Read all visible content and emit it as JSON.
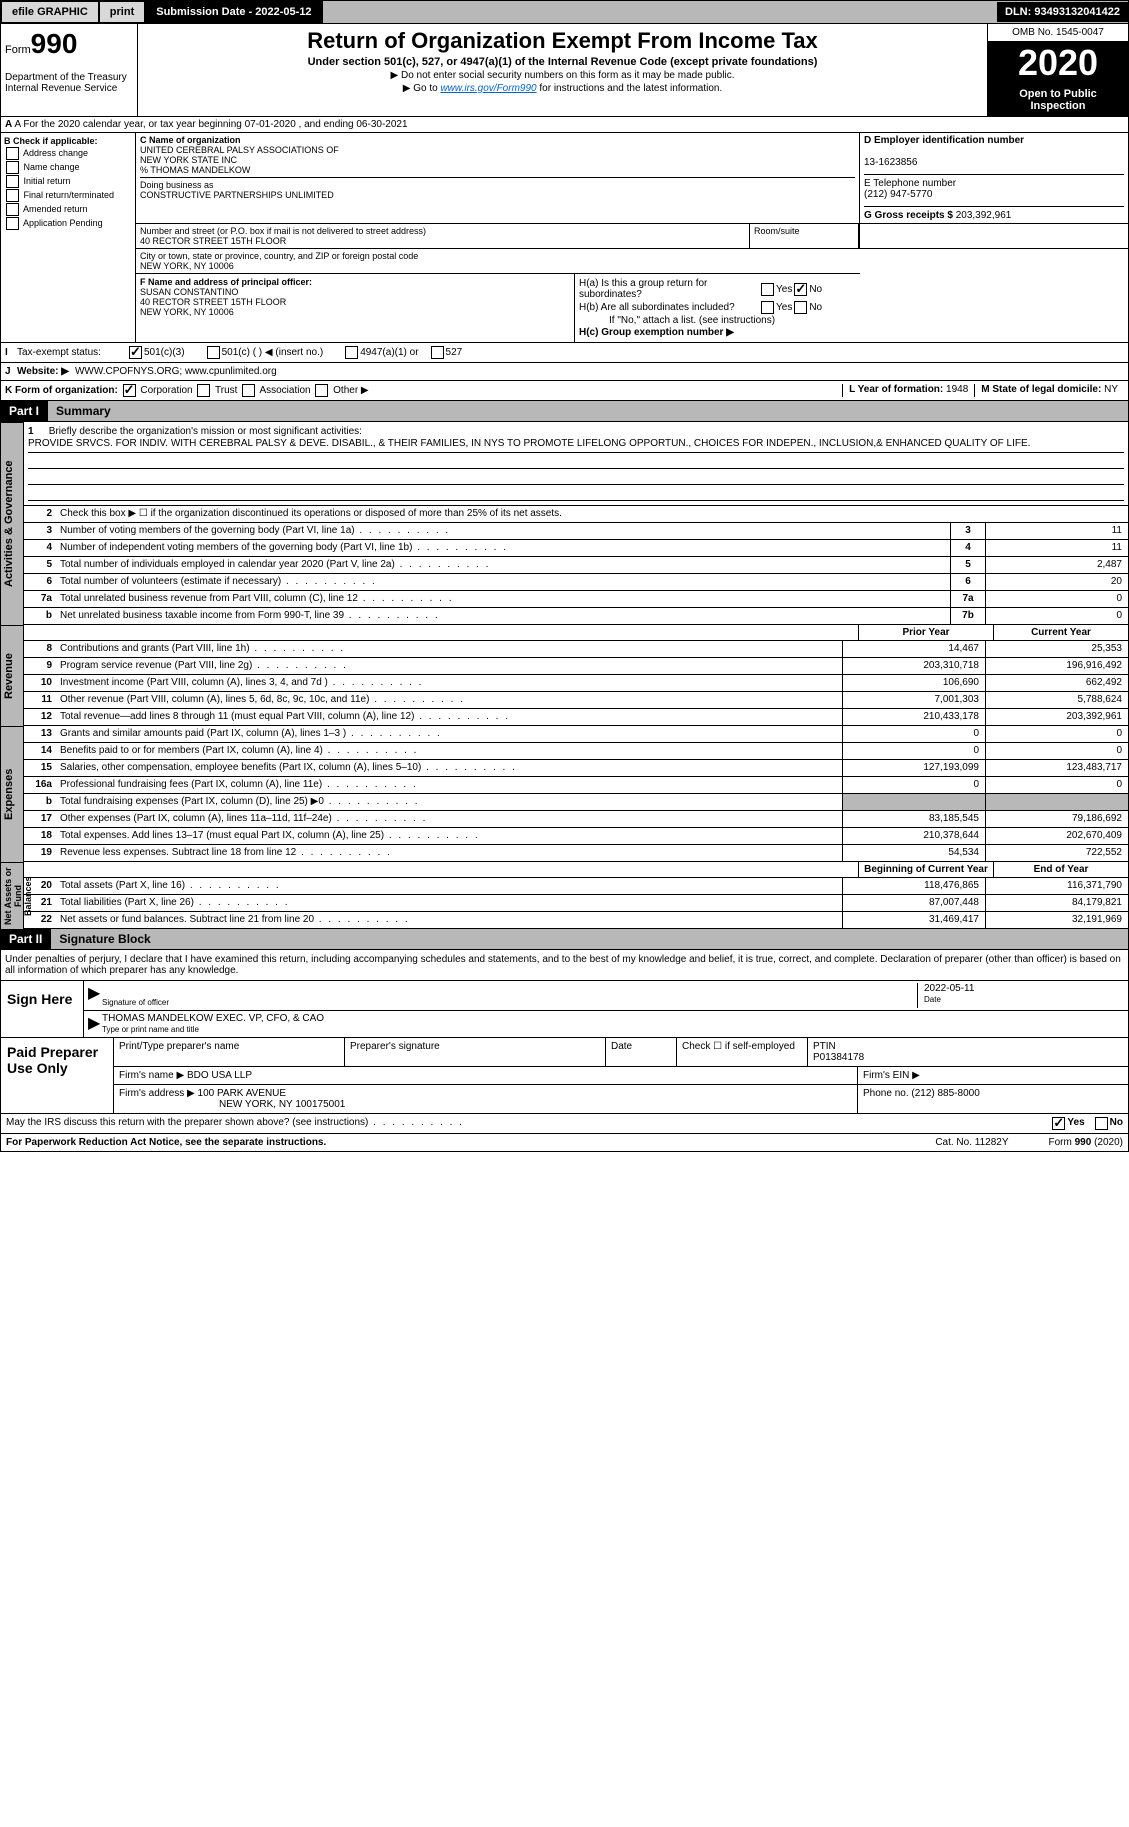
{
  "header": {
    "efile": "efile GRAPHIC",
    "print": "print",
    "subdate_lbl": "Submission Date - ",
    "subdate": "2022-05-12",
    "dln_lbl": "DLN: ",
    "dln": "93493132041422"
  },
  "form": {
    "form_lbl": "Form",
    "form_no": "990",
    "dept": "Department of the Treasury\nInternal Revenue Service",
    "title": "Return of Organization Exempt From Income Tax",
    "sub1": "Under section 501(c), 527, or 4947(a)(1) of the Internal Revenue Code (except private foundations)",
    "sub2": "▶ Do not enter social security numbers on this form as it may be made public.",
    "goto": "▶ Go to ",
    "goto_link": "www.irs.gov/Form990",
    "goto_after": " for instructions and the latest information.",
    "omb": "OMB No. 1545-0047",
    "year": "2020",
    "otp": "Open to Public Inspection"
  },
  "lineA": "A For the 2020 calendar year, or tax year beginning 07-01-2020    , and ending 06-30-2021",
  "B": {
    "hdr": "B Check if applicable:",
    "opts": [
      "Address change",
      "Name change",
      "Initial return",
      "Final return/terminated",
      "Amended return",
      "Application Pending"
    ]
  },
  "C": {
    "name_lbl": "C Name of organization",
    "name": "UNITED CEREBRAL PALSY ASSOCIATIONS OF\nNEW YORK STATE INC\n% THOMAS MANDELKOW",
    "dba_lbl": "Doing business as",
    "dba": "CONSTRUCTIVE PARTNERSHIPS UNLIMITED",
    "addr_lbl": "Number and street (or P.O. box if mail is not delivered to street address)",
    "addr": "40 RECTOR STREET 15TH FLOOR",
    "room_lbl": "Room/suite",
    "city_lbl": "City or town, state or province, country, and ZIP or foreign postal code",
    "city": "NEW YORK, NY  10006"
  },
  "D": {
    "lbl": "D Employer identification number",
    "val": "13-1623856"
  },
  "E": {
    "lbl": "E Telephone number",
    "val": "(212) 947-5770"
  },
  "G": {
    "lbl": "G Gross receipts $ ",
    "val": "203,392,961"
  },
  "F": {
    "lbl": "F  Name and address of principal officer:",
    "name": "SUSAN CONSTANTINO",
    "addr": "40 RECTOR STREET 15TH FLOOR\nNEW YORK, NY 10006"
  },
  "H": {
    "a_lbl": "H(a)  Is this a group return for subordinates?",
    "b_lbl": "H(b)  Are all subordinates included?",
    "b_note": "If \"No,\" attach a list. (see instructions)",
    "c_lbl": "H(c)  Group exemption number ▶",
    "yes": "Yes",
    "no": "No"
  },
  "I": {
    "lbl": "Tax-exempt status:",
    "opts": [
      "501(c)(3)",
      "501(c) (  ) ◀ (insert no.)",
      "4947(a)(1) or",
      "527"
    ]
  },
  "J": {
    "lbl": "J",
    "txt": "Website: ▶",
    "val": "WWW.CPOFNYS.ORG; www.cpunlimited.org"
  },
  "K": {
    "lbl": "K Form of organization:",
    "opts": [
      "Corporation",
      "Trust",
      "Association",
      "Other ▶"
    ]
  },
  "L": {
    "lbl": "L Year of formation: ",
    "val": "1948"
  },
  "M": {
    "lbl": "M State of legal domicile: ",
    "val": "NY"
  },
  "part1": {
    "hdr": "Part I",
    "title": "Summary"
  },
  "briefly": {
    "num": "1",
    "lbl": "Briefly describe the organization's mission or most significant activities:",
    "txt": "PROVIDE SRVCS. FOR INDIV. WITH CEREBRAL PALSY & DEVE. DISABIL., & THEIR FAMILIES, IN NYS TO PROMOTE LIFELONG OPPORTUN., CHOICES FOR INDEPEN., INCLUSION,& ENHANCED QUALITY OF LIFE."
  },
  "gov": {
    "l2": "Check this box ▶  ☐  if the organization discontinued its operations or disposed of more than 25% of its net assets.",
    "rows": [
      {
        "n": "3",
        "t": "Number of voting members of the governing body (Part VI, line 1a)",
        "b": "3",
        "v": "11"
      },
      {
        "n": "4",
        "t": "Number of independent voting members of the governing body (Part VI, line 1b)",
        "b": "4",
        "v": "11"
      },
      {
        "n": "5",
        "t": "Total number of individuals employed in calendar year 2020 (Part V, line 2a)",
        "b": "5",
        "v": "2,487"
      },
      {
        "n": "6",
        "t": "Total number of volunteers (estimate if necessary)",
        "b": "6",
        "v": "20"
      },
      {
        "n": "7a",
        "t": "Total unrelated business revenue from Part VIII, column (C), line 12",
        "b": "7a",
        "v": "0"
      },
      {
        "n": "b",
        "t": "Net unrelated business taxable income from Form 990-T, line 39",
        "b": "7b",
        "v": "0"
      }
    ]
  },
  "cols": {
    "prior": "Prior Year",
    "curr": "Current Year",
    "boy": "Beginning of Current Year",
    "eoy": "End of Year"
  },
  "rev": [
    {
      "n": "8",
      "t": "Contributions and grants (Part VIII, line 1h)",
      "p": "14,467",
      "c": "25,353"
    },
    {
      "n": "9",
      "t": "Program service revenue (Part VIII, line 2g)",
      "p": "203,310,718",
      "c": "196,916,492"
    },
    {
      "n": "10",
      "t": "Investment income (Part VIII, column (A), lines 3, 4, and 7d )",
      "p": "106,690",
      "c": "662,492"
    },
    {
      "n": "11",
      "t": "Other revenue (Part VIII, column (A), lines 5, 6d, 8c, 9c, 10c, and 11e)",
      "p": "7,001,303",
      "c": "5,788,624"
    },
    {
      "n": "12",
      "t": "Total revenue—add lines 8 through 11 (must equal Part VIII, column (A), line 12)",
      "p": "210,433,178",
      "c": "203,392,961"
    }
  ],
  "exp": [
    {
      "n": "13",
      "t": "Grants and similar amounts paid (Part IX, column (A), lines 1–3 )",
      "p": "0",
      "c": "0"
    },
    {
      "n": "14",
      "t": "Benefits paid to or for members (Part IX, column (A), line 4)",
      "p": "0",
      "c": "0"
    },
    {
      "n": "15",
      "t": "Salaries, other compensation, employee benefits (Part IX, column (A), lines 5–10)",
      "p": "127,193,099",
      "c": "123,483,717"
    },
    {
      "n": "16a",
      "t": "Professional fundraising fees (Part IX, column (A), line 11e)",
      "p": "0",
      "c": "0"
    },
    {
      "n": "b",
      "t": "Total fundraising expenses (Part IX, column (D), line 25) ▶0",
      "p": "",
      "c": "",
      "g": true
    },
    {
      "n": "17",
      "t": "Other expenses (Part IX, column (A), lines 11a–11d, 11f–24e)",
      "p": "83,185,545",
      "c": "79,186,692"
    },
    {
      "n": "18",
      "t": "Total expenses. Add lines 13–17 (must equal Part IX, column (A), line 25)",
      "p": "210,378,644",
      "c": "202,670,409"
    },
    {
      "n": "19",
      "t": "Revenue less expenses. Subtract line 18 from line 12",
      "p": "54,534",
      "c": "722,552"
    }
  ],
  "na": [
    {
      "n": "20",
      "t": "Total assets (Part X, line 16)",
      "p": "118,476,865",
      "c": "116,371,790"
    },
    {
      "n": "21",
      "t": "Total liabilities (Part X, line 26)",
      "p": "87,007,448",
      "c": "84,179,821"
    },
    {
      "n": "22",
      "t": "Net assets or fund balances. Subtract line 21 from line 20",
      "p": "31,469,417",
      "c": "32,191,969"
    }
  ],
  "part2": {
    "hdr": "Part II",
    "title": "Signature Block"
  },
  "sig": {
    "para": "Under penalties of perjury, I declare that I have examined this return, including accompanying schedules and statements, and to the best of my knowledge and belief, it is true, correct, and complete. Declaration of preparer (other than officer) is based on all information of which preparer has any knowledge.",
    "sign_here": "Sign Here",
    "sig_lbl": "Signature of officer",
    "date_lbl": "Date",
    "date": "2022-05-11",
    "name": "THOMAS MANDELKOW  EXEC. VP, CFO, & CAO",
    "name_lbl": "Type or print name and title"
  },
  "prep": {
    "hdr": "Paid Preparer Use Only",
    "c1": "Print/Type preparer's name",
    "c2": "Preparer's signature",
    "c3": "Date",
    "c4": "Check ☐ if self-employed",
    "c5": "PTIN",
    "ptin": "P01384178",
    "firm_lbl": "Firm's name    ▶",
    "firm": "BDO USA LLP",
    "ein_lbl": "Firm's EIN ▶",
    "addr_lbl": "Firm's address ▶",
    "addr": "100 PARK AVENUE",
    "addr2": "NEW YORK, NY  100175001",
    "phone_lbl": "Phone no. ",
    "phone": "(212) 885-8000"
  },
  "may": {
    "txt": "May the IRS discuss this return with the preparer shown above? (see instructions)",
    "yes": "Yes",
    "no": "No"
  },
  "foot": {
    "l": "For Paperwork Reduction Act Notice, see the separate instructions.",
    "m": "Cat. No. 11282Y",
    "r": "Form 990 (2020)"
  },
  "tabs": {
    "gov": "Activities & Governance",
    "rev": "Revenue",
    "exp": "Expenses",
    "na": "Net Assets or Fund Balances"
  }
}
